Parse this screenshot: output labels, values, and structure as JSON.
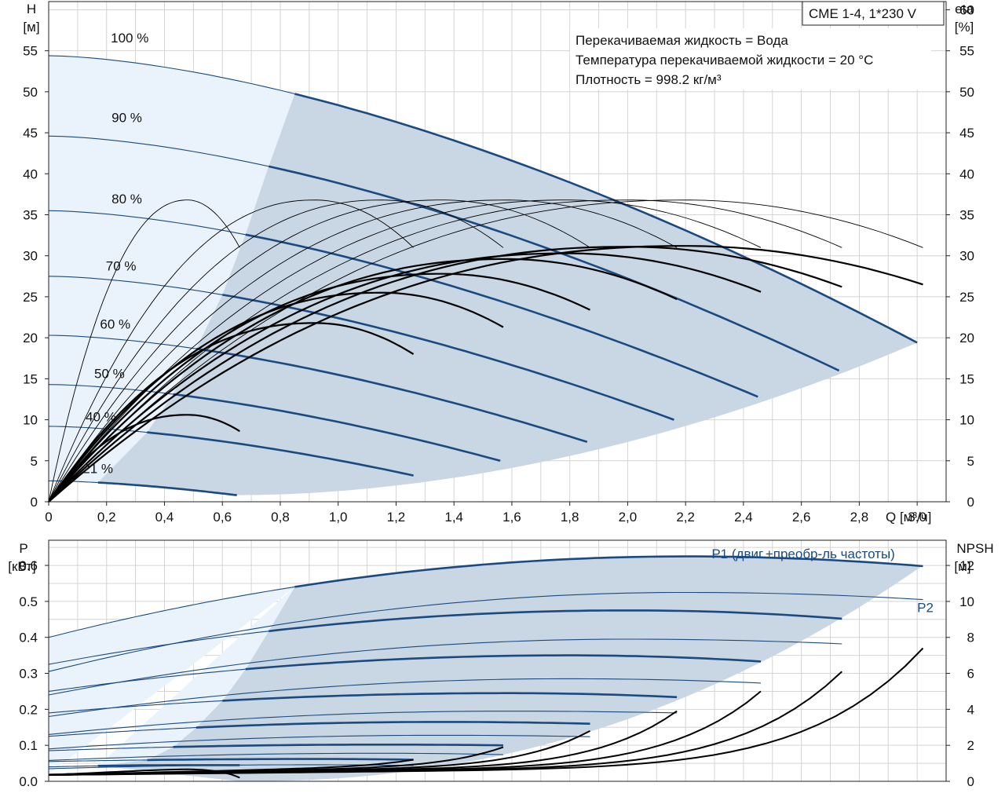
{
  "title_box": "CME 1-4, 1*230 V",
  "info": {
    "line1": "Перекачиваемая жидкость = Вода",
    "line2": "Температура перекачиваемой жидкости = 20 °C",
    "line3": "Плотность = 998.2 кг/м³"
  },
  "colors": {
    "dark_blue": "#1a4a80",
    "shade": "#c9d6e4",
    "light_shade": "#eaf3fb",
    "black": "#000000",
    "grid": "#d4d4d4"
  },
  "chart_data": [
    {
      "type": "line",
      "name": "head-efficiency",
      "x_unit_label": "Q [м³/ч]",
      "y_left_label": [
        "H",
        "[м]"
      ],
      "y_right_label": [
        "eta",
        "[%]"
      ],
      "xlim": [
        0,
        3.1
      ],
      "ylim_left": [
        0,
        61
      ],
      "ylim_right": [
        0,
        61
      ],
      "x_ticks": [
        "0",
        "0,2",
        "0,4",
        "0,6",
        "0,8",
        "1,0",
        "1,2",
        "1,4",
        "1,6",
        "1,8",
        "2,0",
        "2,2",
        "2,4",
        "2,6",
        "2,8",
        "3,0"
      ],
      "y_left_ticks": [
        0,
        5,
        10,
        15,
        20,
        25,
        30,
        35,
        40,
        45,
        50,
        55
      ],
      "y_right_ticks": [
        0,
        5,
        10,
        15,
        20,
        25,
        30,
        35,
        40,
        45,
        50,
        55,
        60
      ],
      "grid": true,
      "speed_curves": [
        {
          "label": "100 %",
          "label_at": [
            0.28,
            56.0
          ],
          "H0": 54.4,
          "Qmax": 3.0,
          "Hend": 19.4,
          "Qstart": 0.85
        },
        {
          "label": "90 %",
          "label_at": [
            0.27,
            46.3
          ],
          "H0": 44.6,
          "Qmax": 2.73,
          "Hend": 16.0,
          "Qstart": 0.76
        },
        {
          "label": "80 %",
          "label_at": [
            0.27,
            36.4
          ],
          "H0": 35.5,
          "Qmax": 2.45,
          "Hend": 12.8,
          "Qstart": 0.68
        },
        {
          "label": "70 %",
          "label_at": [
            0.25,
            28.2
          ],
          "H0": 27.5,
          "Qmax": 2.16,
          "Hend": 10.0,
          "Qstart": 0.6
        },
        {
          "label": "60 %",
          "label_at": [
            0.23,
            21.1
          ],
          "H0": 20.3,
          "Qmax": 1.86,
          "Hend": 7.3,
          "Qstart": 0.51
        },
        {
          "label": "50 %",
          "label_at": [
            0.21,
            15.1
          ],
          "H0": 14.3,
          "Qmax": 1.56,
          "Hend": 5.0,
          "Qstart": 0.43
        },
        {
          "label": "40 %",
          "label_at": [
            0.18,
            9.8
          ],
          "H0": 9.2,
          "Qmax": 1.26,
          "Hend": 3.2,
          "Qstart": 0.34
        },
        {
          "label": "21 %",
          "label_at": [
            0.17,
            3.5
          ],
          "H0": 2.55,
          "Qmax": 0.65,
          "Hend": 0.8,
          "Qstart": 0.17
        }
      ],
      "eta_curves_thin": [
        {
          "Qpk": 0.48,
          "peak": 36.8,
          "Qend": 0.66,
          "Hend": 31.0
        },
        {
          "Qpk": 0.92,
          "peak": 36.8,
          "Qend": 1.26,
          "Hend": 31.0
        },
        {
          "Qpk": 1.15,
          "peak": 36.8,
          "Qend": 1.57,
          "Hend": 31.0
        },
        {
          "Qpk": 1.36,
          "peak": 36.8,
          "Qend": 1.87,
          "Hend": 31.0
        },
        {
          "Qpk": 1.58,
          "peak": 36.8,
          "Qend": 2.17,
          "Hend": 31.0
        },
        {
          "Qpk": 1.79,
          "peak": 36.8,
          "Qend": 2.46,
          "Hend": 31.0
        },
        {
          "Qpk": 2.0,
          "peak": 36.8,
          "Qend": 2.74,
          "Hend": 31.0
        },
        {
          "Qpk": 2.2,
          "peak": 36.8,
          "Qend": 3.02,
          "Hend": 31.0
        }
      ],
      "eta_curves_bold": [
        {
          "Qpk": 0.48,
          "peak": 10.6,
          "Qend": 0.66,
          "Hend": 8.6
        },
        {
          "Qpk": 0.92,
          "peak": 21.8,
          "Qend": 1.26,
          "Hend": 18.0
        },
        {
          "Qpk": 1.15,
          "peak": 25.5,
          "Qend": 1.57,
          "Hend": 21.3
        },
        {
          "Qpk": 1.36,
          "peak": 27.8,
          "Qend": 1.87,
          "Hend": 23.4
        },
        {
          "Qpk": 1.58,
          "peak": 29.6,
          "Qend": 2.17,
          "Hend": 24.7
        },
        {
          "Qpk": 1.79,
          "peak": 30.3,
          "Qend": 2.46,
          "Hend": 25.6
        },
        {
          "Qpk": 2.0,
          "peak": 31.1,
          "Qend": 2.74,
          "Hend": 26.2
        },
        {
          "Qpk": 2.2,
          "peak": 31.2,
          "Qend": 3.02,
          "Hend": 26.5
        }
      ]
    },
    {
      "type": "line",
      "name": "power-npsh",
      "y_left_label": [
        "P",
        "[кВт]"
      ],
      "y_right_label": [
        "NPSH",
        "[м]"
      ],
      "xlim": [
        0,
        3.1
      ],
      "ylim_left": [
        0,
        0.67
      ],
      "ylim_right": [
        0,
        13.4
      ],
      "y_left_ticks": [
        "0.0",
        "0.1",
        "0.2",
        "0.3",
        "0.4",
        "0.5",
        "0.6"
      ],
      "y_right_ticks": [
        "0",
        "2",
        "4",
        "6",
        "8",
        "10",
        "12"
      ],
      "grid": true,
      "series_labels": [
        {
          "text": "P1 (двиг.+преобр-ль частоты)",
          "at": [
            2.29,
            0.62
          ]
        },
        {
          "text": "P2",
          "at": [
            3.0,
            0.47
          ]
        }
      ],
      "p1_curves": [
        {
          "P0": 0.4,
          "Qpk": 2.2,
          "Ppk": 0.625,
          "Qend": 3.02,
          "Pend": 0.598,
          "Qstart": 0.85
        },
        {
          "P0": 0.325,
          "Qpk": 2.0,
          "Ppk": 0.475,
          "Qend": 2.74,
          "Pend": 0.452,
          "Qstart": 0.76
        },
        {
          "P0": 0.25,
          "Qpk": 1.79,
          "Ppk": 0.35,
          "Qend": 2.46,
          "Pend": 0.333,
          "Qstart": 0.68
        },
        {
          "P0": 0.19,
          "Qpk": 1.58,
          "Ppk": 0.245,
          "Qend": 2.17,
          "Pend": 0.234,
          "Qstart": 0.6
        },
        {
          "P0": 0.125,
          "Qpk": 1.36,
          "Ppk": 0.165,
          "Qend": 1.87,
          "Pend": 0.16,
          "Qstart": 0.51
        },
        {
          "P0": 0.085,
          "Qpk": 1.15,
          "Ppk": 0.102,
          "Qend": 1.57,
          "Pend": 0.1,
          "Qstart": 0.43
        },
        {
          "P0": 0.055,
          "Qpk": 0.92,
          "Ppk": 0.062,
          "Qend": 1.26,
          "Pend": 0.06,
          "Qstart": 0.34
        },
        {
          "P0": 0.04,
          "Qpk": 0.48,
          "Ppk": 0.045,
          "Qend": 0.66,
          "Pend": 0.045,
          "Qstart": 0.17
        }
      ],
      "p2_curves": [
        {
          "P0": 0.305,
          "Qpk": 2.2,
          "Ppk": 0.525,
          "Qend": 3.02,
          "Pend": 0.505
        },
        {
          "P0": 0.24,
          "Qpk": 2.0,
          "Ppk": 0.395,
          "Qend": 2.74,
          "Pend": 0.382
        },
        {
          "P0": 0.18,
          "Qpk": 1.79,
          "Ppk": 0.285,
          "Qend": 2.46,
          "Pend": 0.273
        },
        {
          "P0": 0.13,
          "Qpk": 1.58,
          "Ppk": 0.195,
          "Qend": 2.17,
          "Pend": 0.19
        },
        {
          "P0": 0.09,
          "Qpk": 1.36,
          "Ppk": 0.128,
          "Qend": 1.87,
          "Pend": 0.124
        },
        {
          "P0": 0.058,
          "Qpk": 1.15,
          "Ppk": 0.078,
          "Qend": 1.57,
          "Pend": 0.074
        },
        {
          "P0": 0.035,
          "Qpk": 0.92,
          "Ppk": 0.046,
          "Qend": 1.26,
          "Pend": 0.044
        },
        {
          "P0": 0.02,
          "Qpk": 0.48,
          "Ppk": 0.025,
          "Qend": 0.66,
          "Pend": 0.024
        }
      ],
      "npsh_curves": [
        {
          "Qend": 0.66,
          "Nend": 0.2
        },
        {
          "Qend": 1.26,
          "Nend": 1.2
        },
        {
          "Qend": 1.57,
          "Nend": 1.9
        },
        {
          "Qend": 1.87,
          "Nend": 2.8
        },
        {
          "Qend": 2.17,
          "Nend": 3.9
        },
        {
          "Qend": 2.46,
          "Nend": 5.0
        },
        {
          "Qend": 2.74,
          "Nend": 6.1
        },
        {
          "Qend": 3.02,
          "Nend": 7.4
        }
      ]
    }
  ]
}
